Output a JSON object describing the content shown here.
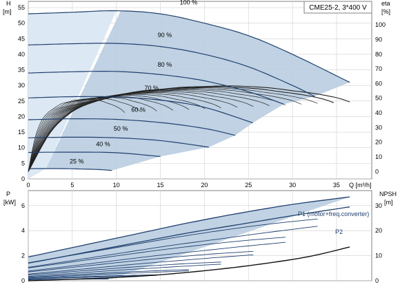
{
  "colors": {
    "curve": "#1f3f6e",
    "region": "#b9cde0",
    "region_light": "#dce8f3",
    "grid": "#cfcfcf",
    "eff": "#222222"
  },
  "chart_data": [
    {
      "type": "line",
      "panel": "head-and-efficiency",
      "title": "CME25-2, 3*400 V",
      "xlabel": "Q [m³/h]",
      "ylabel_left": "H",
      "ylabel_left_unit": "[m]",
      "ylabel_right": "eta",
      "ylabel_right_unit": "[%]",
      "xlim": [
        0,
        39
      ],
      "ylim_left": [
        0,
        57
      ],
      "ylim_right": [
        -5,
        116
      ],
      "x_ticks": [
        0,
        5,
        10,
        15,
        20,
        25,
        30,
        35
      ],
      "y_ticks_left": [
        0,
        5,
        10,
        15,
        20,
        25,
        30,
        35,
        40,
        45,
        50,
        55
      ],
      "y_ticks_right": [
        0,
        10,
        20,
        30,
        40,
        50,
        60,
        70,
        80,
        90,
        100
      ],
      "grid": true,
      "series": [
        {
          "name": "100 %",
          "x": [
            0,
            5,
            10,
            15,
            20,
            25,
            30,
            36.5
          ],
          "values": [
            53,
            53.5,
            54,
            53,
            50,
            46,
            40,
            31
          ]
        },
        {
          "name": "90 %",
          "x": [
            0,
            5,
            10,
            15,
            20,
            25,
            30,
            32.5
          ],
          "values": [
            43,
            43.4,
            43.5,
            42.5,
            40,
            36,
            30,
            26.5
          ]
        },
        {
          "name": "80 %",
          "x": [
            0,
            5,
            10,
            15,
            20,
            25,
            29
          ],
          "values": [
            34,
            34.4,
            34.5,
            33.5,
            31.5,
            28,
            24
          ]
        },
        {
          "name": "70 %",
          "x": [
            0,
            5,
            10,
            15,
            20,
            25.5
          ],
          "values": [
            26,
            26.4,
            26.3,
            25.3,
            23,
            18
          ]
        },
        {
          "name": "60 %",
          "x": [
            0,
            5,
            10,
            15,
            20,
            23.5
          ],
          "values": [
            19,
            19.3,
            19.1,
            18.1,
            16.2,
            14
          ]
        },
        {
          "name": "50 %",
          "x": [
            0,
            5,
            10,
            15,
            20.5
          ],
          "values": [
            13.2,
            13.4,
            13.2,
            12.3,
            10.2
          ]
        },
        {
          "name": "40 %",
          "x": [
            0,
            5,
            10,
            15
          ],
          "values": [
            8.5,
            8.6,
            8.4,
            7.2
          ]
        },
        {
          "name": "25 %",
          "x": [
            0,
            4,
            8,
            9.5
          ],
          "values": [
            3.3,
            3.3,
            3.0,
            2.7
          ]
        }
      ],
      "efficiency": {
        "x": [
          0,
          2.5,
          5,
          7.5,
          10,
          12.5,
          15,
          17.5,
          20,
          22.5,
          25,
          27.5,
          30,
          32.5,
          35,
          36.5
        ],
        "values": [
          0,
          28,
          43,
          50,
          54,
          57.5,
          59,
          60.5,
          61,
          61.5,
          61,
          60,
          58,
          56,
          53,
          50
        ]
      }
    },
    {
      "type": "line",
      "panel": "power-and-npsh",
      "xlabel": "",
      "ylabel_left": "P",
      "ylabel_left_unit": "[kW]",
      "ylabel_right": "NPSH",
      "ylabel_right_unit": "[m]",
      "xlim": [
        0,
        39
      ],
      "ylim_left": [
        0,
        7.2
      ],
      "ylim_right": [
        0,
        36
      ],
      "y_ticks_left": [
        0,
        2,
        4,
        6
      ],
      "y_ticks_right": [
        0,
        10,
        20,
        30
      ],
      "grid": true,
      "series": [
        {
          "name": "P1 (motor+freq.converter)",
          "x": [
            0,
            6,
            12,
            18,
            24,
            30,
            36.5
          ],
          "values": [
            1.9,
            2.8,
            3.7,
            4.6,
            5.4,
            6.1,
            6.7
          ]
        },
        {
          "name": "P2",
          "x": [
            0,
            6,
            12,
            18,
            24,
            30,
            36.5
          ],
          "values": [
            1.4,
            2.2,
            3.0,
            3.8,
            4.5,
            5.2,
            5.9
          ]
        }
      ],
      "npsh": {
        "x": [
          0,
          5,
          10,
          15,
          20,
          25,
          30,
          33,
          36.5
        ],
        "values": [
          0,
          0.6,
          1.3,
          2.4,
          4.0,
          6.0,
          8.5,
          10.5,
          13.5
        ]
      }
    }
  ]
}
